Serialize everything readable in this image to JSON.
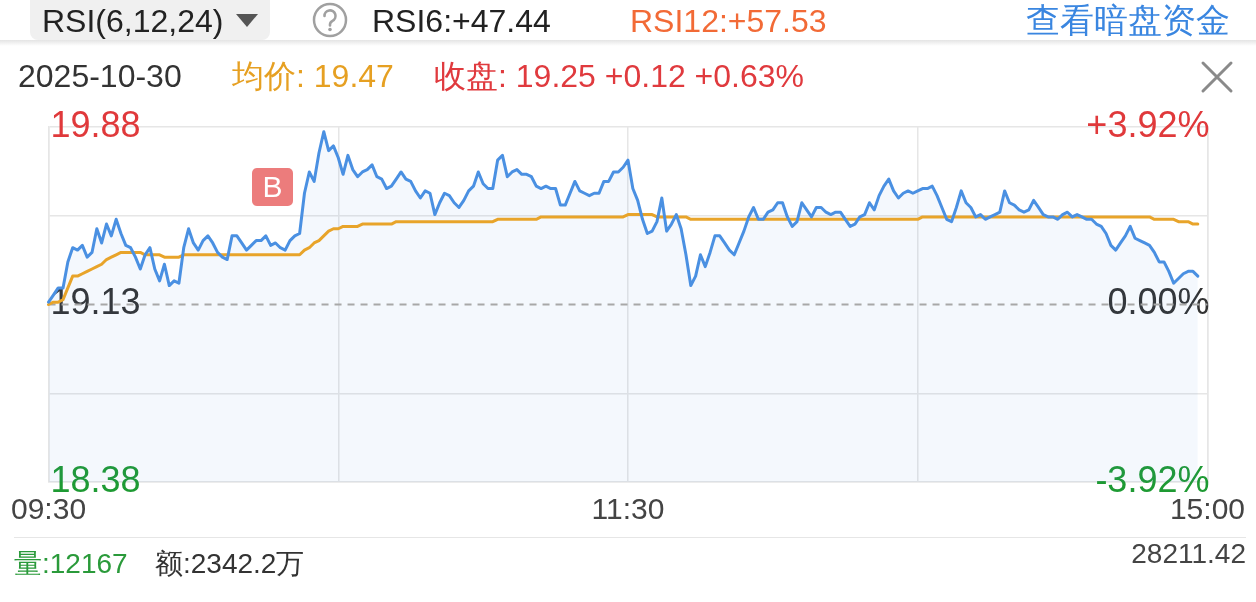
{
  "chart_data": {
    "type": "line",
    "annotations": [
      "RSI(6,12,24)",
      "RSI6:+47.44",
      "RSI12:+57.53",
      "查看暗盘资金",
      "2025-10-30",
      "均价: 19.47",
      "收盘: 19.25 +0.12 +0.63%",
      "量:12167",
      "额:2342.2万",
      "28211.42",
      "B"
    ],
    "categories": [
      "09:30",
      null,
      null,
      null,
      null,
      null,
      null,
      null,
      null,
      null,
      null,
      null,
      null,
      null,
      null,
      null,
      null,
      null,
      null,
      null,
      null,
      null,
      null,
      null,
      null,
      null,
      null,
      null,
      null,
      null,
      null,
      null,
      null,
      null,
      null,
      null,
      null,
      null,
      null,
      null,
      null,
      null,
      null,
      null,
      null,
      null,
      null,
      null,
      null,
      null,
      null,
      null,
      null,
      null,
      null,
      null,
      null,
      null,
      null,
      null,
      null,
      null,
      null,
      null,
      null,
      null,
      null,
      null,
      null,
      null,
      null,
      null,
      null,
      null,
      null,
      null,
      null,
      null,
      null,
      null,
      null,
      null,
      null,
      null,
      null,
      null,
      null,
      null,
      null,
      null,
      null,
      null,
      null,
      null,
      null,
      null,
      null,
      null,
      null,
      null,
      null,
      null,
      null,
      null,
      null,
      null,
      null,
      null,
      null,
      null,
      null,
      null,
      null,
      null,
      null,
      null,
      null,
      null,
      null,
      null,
      "11:30",
      null,
      null,
      null,
      null,
      null,
      null,
      null,
      null,
      null,
      null,
      null,
      null,
      null,
      null,
      null,
      null,
      null,
      null,
      null,
      null,
      null,
      null,
      null,
      null,
      null,
      null,
      null,
      null,
      null,
      null,
      null,
      null,
      null,
      null,
      null,
      null,
      null,
      null,
      null,
      null,
      null,
      null,
      null,
      null,
      null,
      null,
      null,
      null,
      null,
      null,
      null,
      null,
      null,
      null,
      null,
      null,
      null,
      null,
      null,
      null,
      null,
      null,
      null,
      null,
      null,
      null,
      null,
      null,
      null,
      null,
      null,
      null,
      null,
      null,
      null,
      null,
      null,
      null,
      null,
      null,
      null,
      null,
      null,
      null,
      null,
      null,
      null,
      null,
      null,
      null,
      null,
      null,
      null,
      null,
      null,
      null,
      null,
      null,
      null,
      null,
      null,
      null,
      null,
      null,
      null,
      null,
      null,
      null,
      null,
      null,
      null,
      null,
      null,
      null,
      null,
      null,
      null,
      null,
      null,
      "15:00"
    ],
    "series": [
      {
        "type": "area",
        "color": "#4a90e2",
        "values": [
          19.14,
          19.17,
          19.2,
          19.2,
          19.31,
          19.37,
          19.36,
          19.38,
          19.33,
          19.35,
          19.45,
          19.39,
          19.47,
          19.42,
          19.49,
          19.43,
          19.38,
          19.37,
          19.33,
          19.28,
          19.34,
          19.37,
          19.28,
          19.23,
          19.3,
          19.21,
          19.23,
          19.22,
          19.37,
          19.45,
          19.39,
          19.36,
          19.4,
          19.42,
          19.39,
          19.35,
          19.33,
          19.32,
          19.42,
          19.42,
          19.39,
          19.36,
          19.38,
          19.4,
          19.4,
          19.42,
          19.38,
          19.39,
          19.37,
          19.36,
          19.4,
          19.42,
          19.43,
          19.6,
          19.69,
          19.65,
          19.77,
          19.86,
          19.78,
          19.8,
          19.75,
          19.68,
          19.76,
          19.7,
          19.67,
          19.69,
          19.7,
          19.72,
          19.67,
          19.66,
          19.62,
          19.63,
          19.66,
          19.69,
          19.66,
          19.65,
          19.61,
          19.58,
          19.61,
          19.6,
          19.51,
          19.56,
          19.6,
          19.59,
          19.56,
          19.54,
          19.57,
          19.61,
          19.63,
          19.69,
          19.64,
          19.62,
          19.62,
          19.74,
          19.76,
          19.67,
          19.69,
          19.7,
          19.68,
          19.68,
          19.67,
          19.63,
          19.62,
          19.63,
          19.62,
          19.62,
          19.55,
          19.55,
          19.6,
          19.65,
          19.61,
          19.6,
          19.59,
          19.6,
          19.6,
          19.65,
          19.65,
          19.69,
          19.69,
          19.71,
          19.74,
          19.62,
          19.57,
          19.49,
          19.43,
          19.44,
          19.48,
          19.58,
          19.44,
          19.47,
          19.51,
          19.45,
          19.34,
          19.21,
          19.25,
          19.34,
          19.29,
          19.35,
          19.42,
          19.42,
          19.39,
          19.36,
          19.34,
          19.39,
          19.44,
          19.5,
          19.54,
          19.49,
          19.49,
          19.52,
          19.53,
          19.56,
          19.56,
          19.5,
          19.46,
          19.48,
          19.56,
          19.53,
          19.5,
          19.54,
          19.54,
          19.52,
          19.51,
          19.52,
          19.52,
          19.49,
          19.46,
          19.47,
          19.5,
          19.51,
          19.56,
          19.53,
          19.59,
          19.63,
          19.66,
          19.61,
          19.58,
          19.6,
          19.61,
          19.6,
          19.61,
          19.62,
          19.62,
          19.63,
          19.59,
          19.54,
          19.49,
          19.48,
          19.54,
          19.61,
          19.56,
          19.54,
          19.5,
          19.51,
          19.49,
          19.5,
          19.51,
          19.52,
          19.61,
          19.56,
          19.55,
          19.53,
          19.52,
          19.53,
          19.57,
          19.54,
          19.51,
          19.5,
          19.5,
          19.49,
          19.51,
          19.52,
          19.5,
          19.51,
          19.5,
          19.49,
          19.49,
          19.47,
          19.46,
          19.43,
          19.38,
          19.36,
          19.39,
          19.42,
          19.46,
          19.41,
          19.4,
          19.39,
          19.38,
          19.35,
          19.31,
          19.31,
          19.27,
          19.22,
          19.24,
          19.26,
          19.27,
          19.27,
          19.25,
          null,
          null
        ]
      },
      {
        "color": "#e8a42a",
        "values": [
          19.13,
          19.14,
          19.14,
          19.15,
          19.2,
          19.25,
          19.25,
          19.26,
          19.27,
          19.28,
          19.29,
          19.3,
          19.32,
          19.33,
          19.34,
          19.35,
          19.35,
          19.35,
          19.35,
          19.35,
          19.34,
          19.34,
          19.34,
          19.34,
          19.33,
          19.33,
          19.33,
          19.33,
          19.34,
          19.34,
          19.34,
          19.34,
          19.34,
          19.34,
          19.34,
          19.34,
          19.34,
          19.34,
          19.34,
          19.34,
          19.34,
          19.34,
          19.34,
          19.34,
          19.34,
          19.34,
          19.34,
          19.34,
          19.34,
          19.34,
          19.34,
          19.34,
          19.34,
          19.36,
          19.37,
          19.39,
          19.4,
          19.42,
          19.44,
          19.45,
          19.45,
          19.46,
          19.46,
          19.46,
          19.46,
          19.47,
          19.47,
          19.47,
          19.47,
          19.47,
          19.47,
          19.47,
          19.48,
          19.48,
          19.48,
          19.48,
          19.48,
          19.48,
          19.48,
          19.48,
          19.48,
          19.48,
          19.48,
          19.48,
          19.48,
          19.48,
          19.48,
          19.48,
          19.48,
          19.48,
          19.48,
          19.48,
          19.48,
          19.49,
          19.49,
          19.49,
          19.49,
          19.49,
          19.49,
          19.49,
          19.49,
          19.49,
          19.5,
          19.5,
          19.5,
          19.5,
          19.5,
          19.5,
          19.5,
          19.5,
          19.5,
          19.5,
          19.5,
          19.5,
          19.5,
          19.5,
          19.5,
          19.5,
          19.5,
          19.5,
          19.51,
          19.51,
          19.51,
          19.51,
          19.51,
          19.51,
          19.5,
          19.5,
          19.5,
          19.5,
          19.5,
          19.5,
          19.5,
          19.49,
          19.49,
          19.49,
          19.49,
          19.49,
          19.49,
          19.49,
          19.49,
          19.49,
          19.49,
          19.49,
          19.49,
          19.49,
          19.49,
          19.49,
          19.49,
          19.49,
          19.49,
          19.49,
          19.49,
          19.49,
          19.49,
          19.49,
          19.49,
          19.49,
          19.49,
          19.49,
          19.49,
          19.49,
          19.49,
          19.49,
          19.49,
          19.49,
          19.49,
          19.49,
          19.49,
          19.49,
          19.49,
          19.49,
          19.49,
          19.49,
          19.49,
          19.49,
          19.49,
          19.49,
          19.49,
          19.49,
          19.49,
          19.5,
          19.5,
          19.5,
          19.5,
          19.5,
          19.5,
          19.5,
          19.5,
          19.5,
          19.5,
          19.5,
          19.5,
          19.5,
          19.5,
          19.5,
          19.5,
          19.5,
          19.5,
          19.5,
          19.5,
          19.5,
          19.5,
          19.5,
          19.5,
          19.5,
          19.5,
          19.5,
          19.5,
          19.5,
          19.5,
          19.5,
          19.5,
          19.5,
          19.5,
          19.5,
          19.5,
          19.5,
          19.5,
          19.5,
          19.5,
          19.5,
          19.5,
          19.5,
          19.5,
          19.5,
          19.5,
          19.5,
          19.5,
          19.49,
          19.49,
          19.49,
          19.49,
          19.49,
          19.48,
          19.48,
          19.48,
          19.47,
          19.47,
          null,
          null
        ]
      }
    ],
    "ylim": [
      18.38,
      19.88
    ],
    "yticks": [
      18.38,
      {
        "value": 18.755,
        "label": null
      },
      19.13,
      {
        "value": 19.505,
        "label": null
      },
      19.88
    ],
    "y2lim": [
      -3.92,
      3.92
    ],
    "y2ticks": [
      {
        "value": -3.92,
        "label": "-3.92%"
      },
      {
        "value": 0,
        "label": "0.00%"
      },
      {
        "value": 3.92,
        "label": "+3.92%"
      }
    ],
    "ref_lines": [
      {
        "axis": "y",
        "value": 19.13,
        "color": "#a8a8a8",
        "line_style": "dashed"
      }
    ],
    "grid": true,
    "marker": "none"
  }
}
